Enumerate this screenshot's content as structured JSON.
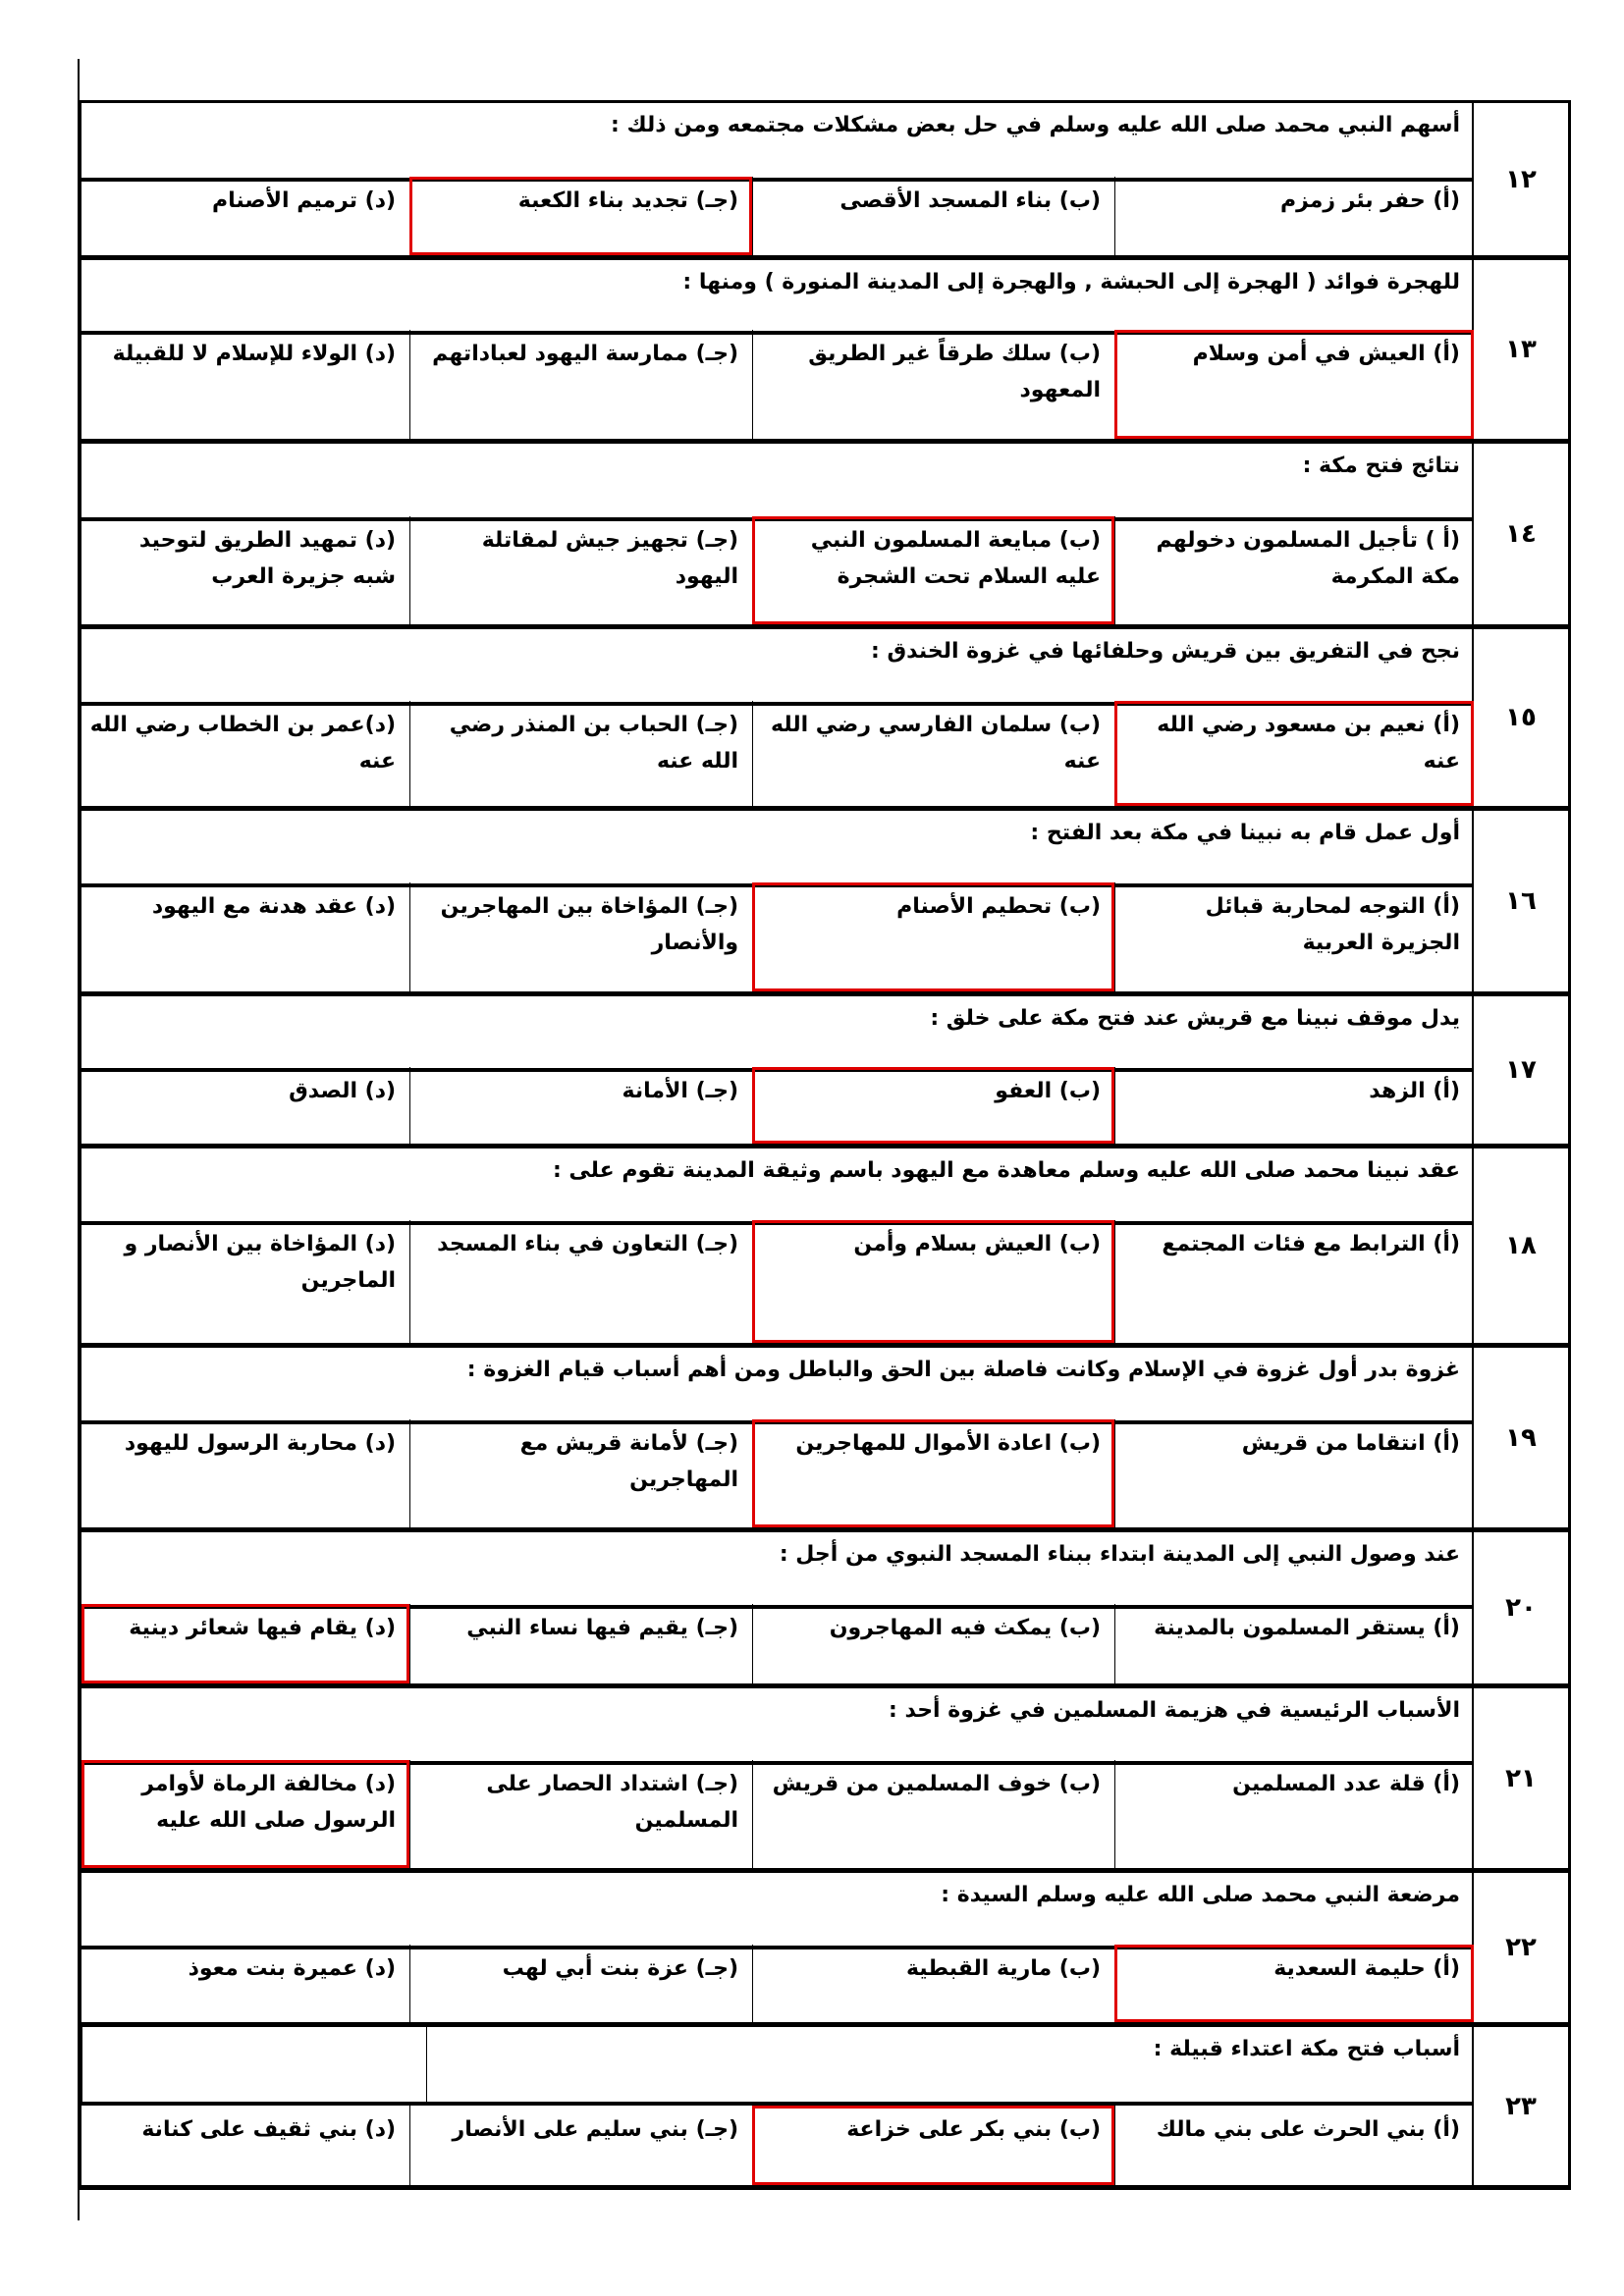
{
  "questions": [
    {
      "number": "١٢",
      "text": "أسهم النبي محمد صلى الله عليه وسلم في حل بعض مشكلات مجتمعه ومن ذلك :",
      "options": [
        "(أ) حفر بئر زمزم",
        "(ب) بناء المسجد الأقصى",
        "(جـ) تجديد بناء الكعبة",
        "(د) ترميم الأصنام"
      ],
      "answer": 2
    },
    {
      "number": "١٣",
      "text": "للهجرة فوائد ( الهجرة إلى الحبشة , والهجرة إلى المدينة المنورة ) ومنها :",
      "options": [
        "(أ) العيش في أمن وسلام",
        "(ب) سلك طرقاً غير الطريق المعهود",
        "(جـ) ممارسة اليهود لعباداتهم",
        "(د) الولاء للإسلام لا للقبيلة"
      ],
      "answer": 0
    },
    {
      "number": "١٤",
      "text": "نتائج فتح مكة :",
      "options": [
        "(أ ) تأجيل المسلمون دخولهم مكة المكرمة",
        "(ب) مبايعة المسلمون النبي عليه السلام تحت الشجرة",
        "(جـ) تجهيز جيش لمقاتلة اليهود",
        "(د) تمهيد الطريق لتوحيد شبه جزيرة العرب"
      ],
      "answer": 1
    },
    {
      "number": "١٥",
      "text": "نجح في التفريق بين قريش وحلفائها في غزوة الخندق :",
      "options": [
        "(أ) نعيم بن مسعود رضي الله عنه",
        "(ب) سلمان الفارسي رضي الله عنه",
        "(جـ) الحباب بن المنذر رضي الله عنه",
        "(د)عمر بن الخطاب رضي الله عنه"
      ],
      "answer": 0
    },
    {
      "number": "١٦",
      "text": "أول عمل قام به نبينا في مكة بعد الفتح :",
      "options": [
        "(أ) التوجه لمحاربة قبائل الجزيرة العربية",
        "(ب) تحطيم الأصنام",
        "(جـ) المؤاخاة بين المهاجرين والأنصار",
        "(د) عقد هدنة مع اليهود"
      ],
      "answer": 1
    },
    {
      "number": "١٧",
      "text": "يدل موقف نبينا مع قريش عند فتح مكة على خلق :",
      "options": [
        "(أ) الزهد",
        "(ب) العفو",
        "(جـ) الأمانة",
        "(د) الصدق"
      ],
      "answer": 1
    },
    {
      "number": "١٨",
      "text": "عقد نبينا محمد صلى الله عليه وسلم معاهدة مع اليهود باسم وثيقة المدينة تقوم على :",
      "options": [
        "(أ) الترابط مع فئات المجتمع",
        "(ب) العيش بسلام وأمن",
        "(جـ) التعاون في بناء المسجد",
        "(د) المؤاخاة بين الأنصار و الماجرين"
      ],
      "answer": 1
    },
    {
      "number": "١٩",
      "text": "غزوة بدر أول غزوة في الإسلام وكانت فاصلة بين الحق والباطل ومن أهم أسباب قيام الغزوة :",
      "options": [
        "(أ) انتقاما من قريش",
        "(ب) اعادة الأموال للمهاجرين",
        "(جـ) لأمانة قريش مع المهاجرين",
        "(د) محاربة الرسول لليهود"
      ],
      "answer": 1
    },
    {
      "number": "٢٠",
      "text": "عند وصول النبي إلى المدينة ابتداء ببناء المسجد النبوي من أجل :",
      "options": [
        "(أ) يستقر المسلمون بالمدينة",
        "(ب) يمكث فيه المهاجرون",
        "(جـ) يقيم فيها نساء النبي",
        "(د) يقام فيها شعائر دينية"
      ],
      "answer": 3
    },
    {
      "number": "٢١",
      "text": "الأسباب الرئيسية في هزيمة المسلمين في غزوة أحد :",
      "options": [
        "(أ) قلة عدد المسلمين",
        "(ب) خوف المسلمين من قريش",
        "(جـ) اشتداد الحصار على المسلمين",
        "(د) مخالفة الرماة لأوامر الرسول صلى الله عليه"
      ],
      "answer": 3
    },
    {
      "number": "٢٢",
      "text": "مرضعة النبي محمد صلى الله عليه وسلم السيدة :",
      "options": [
        "(أ) حليمة السعدية",
        "(ب) مارية القبطية",
        "(جـ) عزة بنت أبي لهب",
        "(د) عميرة بنت معوذ"
      ],
      "answer": 0
    },
    {
      "number": "٢٣",
      "text": "أسباب فتح مكة اعتداء قبيلة :",
      "options": [
        "(أ) بني الحرث على بني مالك",
        "(ب) بني بكر على خزاعة",
        "(جـ) بني سليم على الأنصار",
        "(د) بني ثقيف على كنانة"
      ],
      "answer": 1
    }
  ],
  "colors": {
    "answer_highlight": "#e00000",
    "border": "#000000"
  }
}
